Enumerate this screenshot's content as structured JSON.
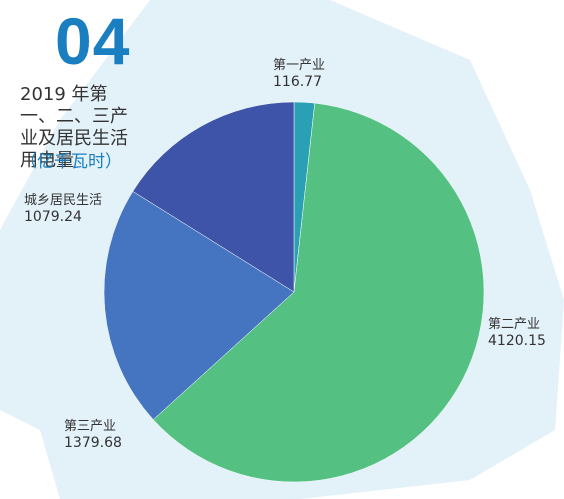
{
  "header": {
    "number": "04",
    "title": "2019 年第一、二、三产业及居民生活用电量",
    "unit": "（亿千瓦时）"
  },
  "colors": {
    "accent": "#1a7fc1",
    "background_shape": "#e3f1f9",
    "text": "#333333"
  },
  "chart_data": {
    "type": "pie",
    "title": "2019 年第一、二、三产业及居民生活用电量",
    "unit": "（亿千瓦时）",
    "slices": [
      {
        "label": "第一产业",
        "value": 116.77,
        "value_text": "116.77",
        "color": "#2aa0b4"
      },
      {
        "label": "第二产业",
        "value": 4120.15,
        "value_text": "4120.15",
        "color": "#54c183"
      },
      {
        "label": "第三产业",
        "value": 1379.68,
        "value_text": "1379.68",
        "color": "#4574c0"
      },
      {
        "label": "城乡居民生活",
        "value": 1079.24,
        "value_text": "1079.24",
        "color": "#3d54a8"
      }
    ],
    "legend": "none",
    "start_angle": "top",
    "direction": "clockwise"
  }
}
